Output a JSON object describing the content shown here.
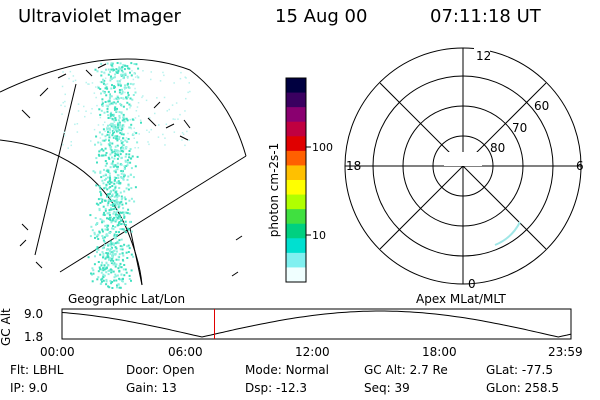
{
  "header": {
    "instrument": "Ultraviolet Imager",
    "date": "15 Aug 00",
    "time": "07:11:18 UT"
  },
  "colorbar": {
    "unit_label": "photon cm-2s-1",
    "tick_labels": [
      "100",
      "10"
    ],
    "colors": [
      "#000040",
      "#3a0060",
      "#8a0070",
      "#c00040",
      "#e00000",
      "#ff6000",
      "#ffc000",
      "#ffff00",
      "#b0ff00",
      "#40e040",
      "#00d080",
      "#00e0d0",
      "#80f0f0",
      "#f0ffff"
    ]
  },
  "polar_plot": {
    "mlt_labels": {
      "top": "12",
      "right": "6",
      "bottom": "0",
      "left": "18"
    },
    "lat_labels": [
      "60",
      "70",
      "80"
    ],
    "frame_label": "Apex MLat/MLT"
  },
  "geo_plot": {
    "frame_label": "Geographic Lat/Lon"
  },
  "orbit_plot": {
    "ylabel": "GC Alt",
    "yticks": [
      "9.0",
      "1.8"
    ],
    "xticks": [
      "00:00",
      "06:00",
      "12:00",
      "18:00",
      "23:59"
    ],
    "current_time_hours": 7.19,
    "marker_color": "#e00000"
  },
  "info": {
    "row1": [
      {
        "label": "Flt:",
        "value": "LBHL"
      },
      {
        "label": "Door:",
        "value": "Open"
      },
      {
        "label": "Mode:",
        "value": "Normal"
      },
      {
        "label": "GC Alt:",
        "value": "2.7 Re"
      },
      {
        "label": "GLat:",
        "value": "-77.5"
      }
    ],
    "row2": [
      {
        "label": "IP:",
        "value": "9.0"
      },
      {
        "label": "Gain:",
        "value": "13"
      },
      {
        "label": "Dsp:",
        "value": "-12.3"
      },
      {
        "label": "Seq:",
        "value": "39"
      },
      {
        "label": "GLon:",
        "value": "258.5"
      }
    ]
  }
}
